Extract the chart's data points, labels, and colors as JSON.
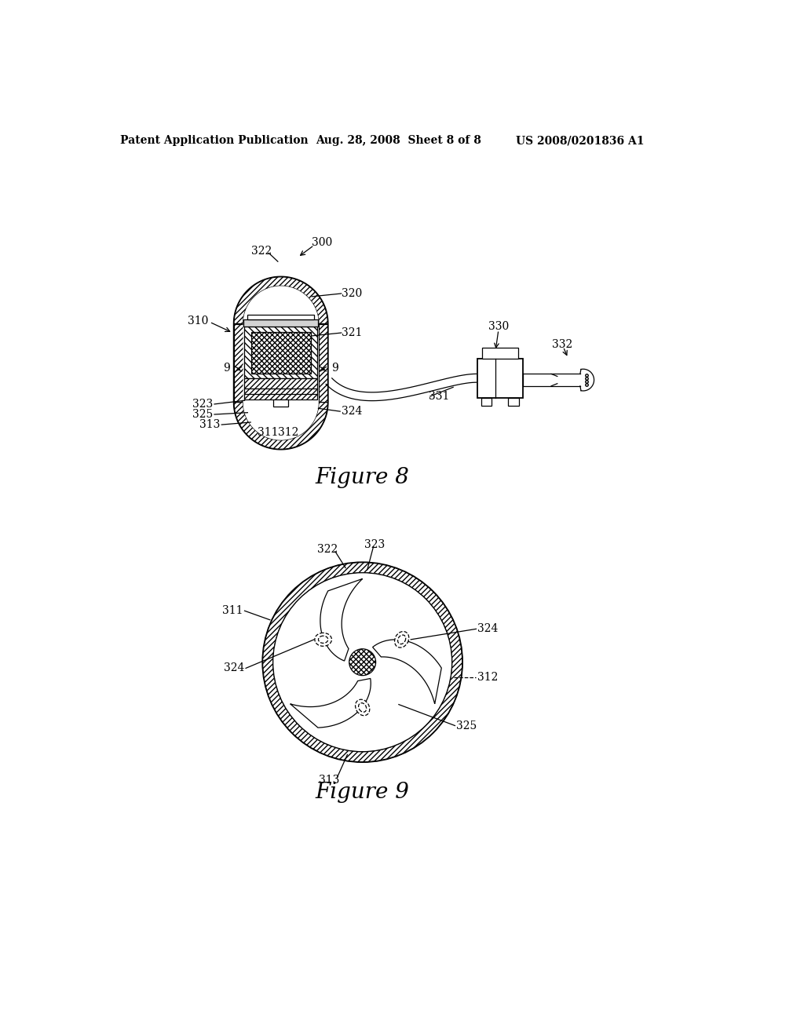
{
  "background_color": "#ffffff",
  "header_left": "Patent Application Publication",
  "header_center": "Aug. 28, 2008  Sheet 8 of 8",
  "header_right": "US 2008/0201836 A1",
  "figure8_caption": "Figure 8",
  "figure9_caption": "Figure 9",
  "line_color": "#000000",
  "label_fontsize": 10,
  "caption_fontsize": 20,
  "header_fontsize": 10
}
